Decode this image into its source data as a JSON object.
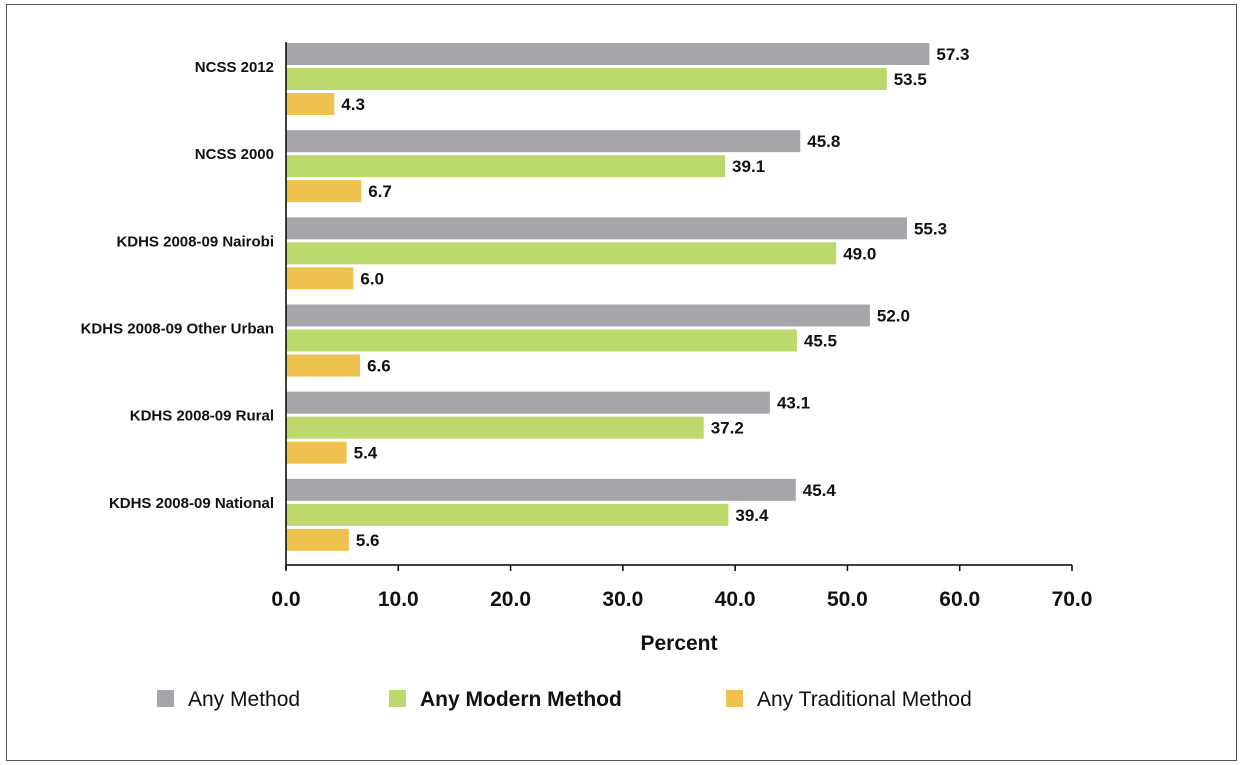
{
  "chart_data": {
    "type": "bar",
    "orientation": "horizontal",
    "categories": [
      "NCSS 2012",
      "NCSS 2000",
      "KDHS 2008-09 Nairobi",
      "KDHS 2008-09 Other Urban",
      "KDHS 2008-09 Rural",
      "KDHS 2008-09 National"
    ],
    "series": [
      {
        "name": "Any Method",
        "color": "#a7a5aa",
        "values": [
          57.3,
          45.8,
          55.3,
          52.0,
          43.1,
          45.4
        ],
        "labels": [
          "57.3",
          "45.8",
          "55.3",
          "52.0",
          "43.1",
          "45.4"
        ]
      },
      {
        "name": "Any Modern Method",
        "color": "#bcd96d",
        "values": [
          53.5,
          39.1,
          49.0,
          45.5,
          37.2,
          39.4
        ],
        "labels": [
          "53.5",
          "39.1",
          "49.0",
          "45.5",
          "37.2",
          "39.4"
        ]
      },
      {
        "name": "Any Traditional Method",
        "color": "#eec24e",
        "values": [
          4.3,
          6.7,
          6.0,
          6.6,
          5.4,
          5.6
        ],
        "labels": [
          "4.3",
          "6.7",
          "6.0",
          "6.6",
          "5.4",
          "5.6"
        ]
      }
    ],
    "xlabel": "Percent",
    "ylabel": "",
    "xlim": [
      0,
      70
    ],
    "xticks": [
      0,
      10,
      20,
      30,
      40,
      50,
      60,
      70
    ],
    "xtick_labels": [
      "0.0",
      "10.0",
      "20.0",
      "30.0",
      "40.0",
      "50.0",
      "60.0",
      "70.0"
    ],
    "grid": false,
    "legend_position": "bottom",
    "legend_bold_series": "Any Modern Method"
  }
}
